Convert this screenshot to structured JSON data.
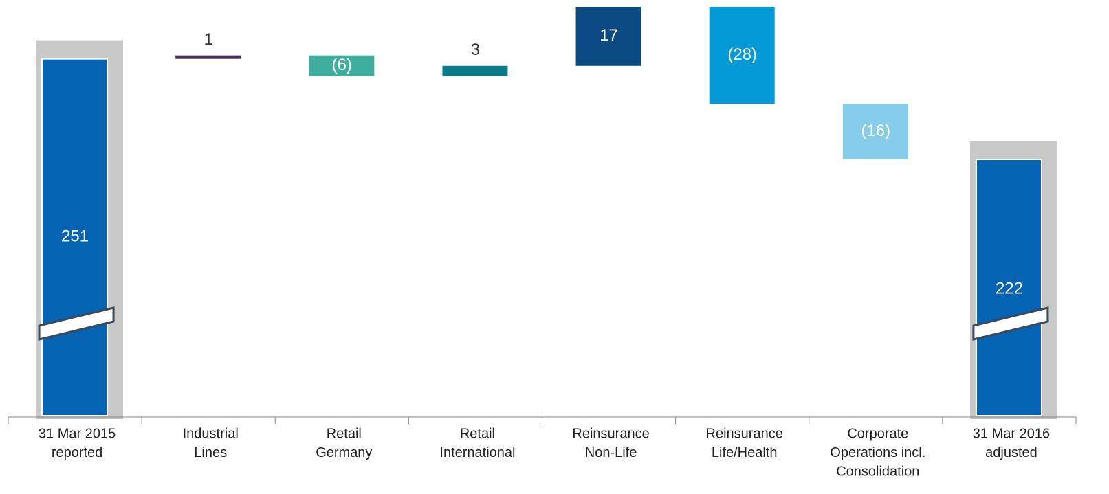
{
  "chart_data": {
    "type": "waterfall",
    "categories": [
      [
        "31 Mar 2015",
        "reported"
      ],
      [
        "Industrial",
        "Lines"
      ],
      [
        "Retail",
        "Germany"
      ],
      [
        "Retail",
        "International"
      ],
      [
        "Reinsurance",
        "Non-Life"
      ],
      [
        "Reinsurance",
        "Life/Health"
      ],
      [
        "Corporate",
        "Operations incl.",
        "Consolidation"
      ],
      [
        "31 Mar 2016",
        "adjusted"
      ]
    ],
    "values": [
      251,
      1,
      -6,
      3,
      17,
      -28,
      -16,
      222
    ],
    "value_labels": [
      "251",
      "1",
      "(6)",
      "3",
      "17",
      "(28)",
      "(16)",
      "222"
    ],
    "colors": [
      "#0563b3",
      "#4b2e5e",
      "#3fae9c",
      "#097a8a",
      "#0b4a82",
      "#0399d6",
      "#86cdec",
      "#0563b3"
    ]
  }
}
